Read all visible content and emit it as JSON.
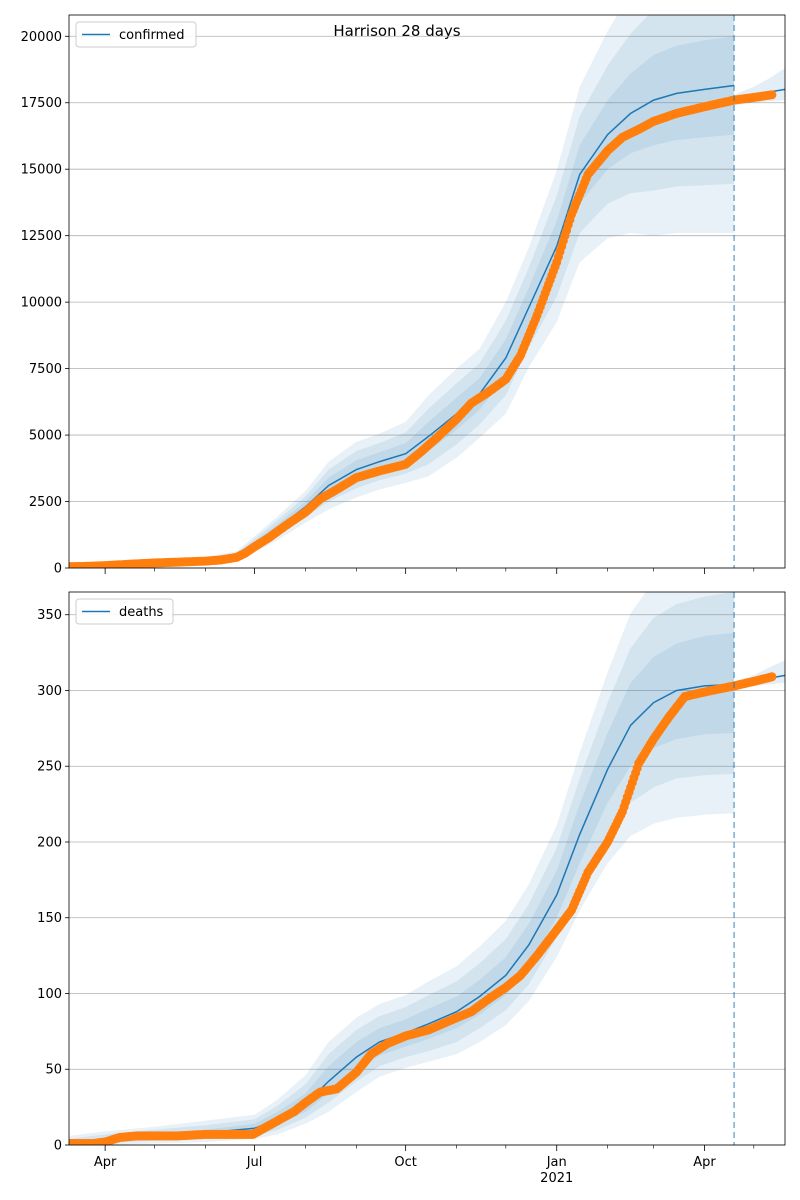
{
  "figure": {
    "title": "Harrison 28 days"
  },
  "colors": {
    "model_line": "#1f77b4",
    "observed": "#ff7f0e",
    "band": "#1f77b4",
    "grid": "#b0b0b0"
  },
  "x_axis": {
    "start": "2020-03-10",
    "end": "2021-05-20",
    "ticks": [
      {
        "date": "2020-04-01",
        "label": "Apr"
      },
      {
        "date": "2020-07-01",
        "label": "Jul"
      },
      {
        "date": "2020-10-01",
        "label": "Oct"
      },
      {
        "date": "2021-01-01",
        "label": "Jan",
        "sublabel": "2021"
      },
      {
        "date": "2021-04-01",
        "label": "Apr"
      }
    ],
    "minor_ticks": [
      "2020-05-01",
      "2020-06-01",
      "2020-08-01",
      "2020-09-01",
      "2020-11-01",
      "2020-12-01",
      "2021-02-01",
      "2021-03-01",
      "2021-05-01"
    ],
    "forecast_start": "2021-04-19"
  },
  "chart_data": [
    {
      "type": "line",
      "title": "Harrison 28 days",
      "legend": "confirmed",
      "legend_position": "upper-left",
      "grid": "y",
      "ylim": [
        0,
        20800
      ],
      "yticks": [
        0,
        2500,
        5000,
        7500,
        10000,
        12500,
        15000,
        17500,
        20000
      ],
      "ytick_labels": [
        "0",
        "2500",
        "5000",
        "7500",
        "10000",
        "12500",
        "15000",
        "17500",
        "20000"
      ],
      "model": {
        "dates": [
          "2020-03-10",
          "2020-04-01",
          "2020-05-01",
          "2020-06-01",
          "2020-06-20",
          "2020-07-01",
          "2020-07-15",
          "2020-08-01",
          "2020-08-15",
          "2020-09-01",
          "2020-09-15",
          "2020-10-01",
          "2020-10-15",
          "2020-11-01",
          "2020-11-15",
          "2020-12-01",
          "2020-12-15",
          "2021-01-01",
          "2021-01-15",
          "2021-02-01",
          "2021-02-15",
          "2021-03-01",
          "2021-03-15",
          "2021-04-01",
          "2021-04-19"
        ],
        "values": [
          0,
          80,
          170,
          270,
          450,
          900,
          1500,
          2300,
          3100,
          3700,
          4000,
          4300,
          4950,
          5800,
          6550,
          7900,
          9800,
          12100,
          14800,
          16300,
          17100,
          17600,
          17850,
          18000,
          18150
        ],
        "bands": [
          {
            "lower": [
              0,
              60,
              130,
              220,
              390,
              800,
              1350,
              2100,
              2800,
              3350,
              3650,
              3900,
              4400,
              5200,
              5950,
              7200,
              9050,
              11150,
              13700,
              15000,
              15600,
              15900,
              16100,
              16200,
              16300
            ],
            "upper": [
              20,
              100,
              210,
              320,
              510,
              1000,
              1650,
              2500,
              3400,
              4050,
              4350,
              4700,
              5500,
              6400,
              7150,
              8600,
              10550,
              13050,
              15900,
              17600,
              18600,
              19300,
              19650,
              19850,
              20000
            ]
          },
          {
            "lower": [
              0,
              40,
              100,
              180,
              330,
              700,
              1200,
              1900,
              2500,
              3000,
              3300,
              3550,
              3900,
              4650,
              5400,
              6500,
              8300,
              10200,
              12600,
              13700,
              14100,
              14200,
              14350,
              14400,
              14450
            ],
            "upper": [
              40,
              120,
              250,
              370,
              570,
              1100,
              1800,
              2700,
              3700,
              4400,
              4700,
              5100,
              6000,
              6950,
              7700,
              9300,
              11300,
              14000,
              17000,
              18900,
              20100,
              21000,
              21400,
              21700,
              21850
            ]
          },
          {
            "lower": [
              0,
              20,
              70,
              140,
              270,
              600,
              1050,
              1700,
              2200,
              2650,
              2950,
              3200,
              3450,
              4150,
              4900,
              5800,
              7550,
              9250,
              11500,
              12400,
              12600,
              12500,
              12600,
              12600,
              12600
            ],
            "upper": [
              60,
              140,
              290,
              420,
              630,
              1200,
              1950,
              2900,
              4000,
              4750,
              5050,
              5500,
              6500,
              7500,
              8250,
              10000,
              12050,
              14950,
              18100,
              20200,
              21600,
              22700,
              23150,
              23500,
              23700
            ]
          }
        ]
      },
      "forecast": {
        "dates": [
          "2021-04-19",
          "2021-05-01",
          "2021-05-10",
          "2021-05-20"
        ],
        "values": [
          17580,
          17750,
          17900,
          18000
        ],
        "lower": [
          17400,
          17500,
          17550,
          17600
        ],
        "upper": [
          17800,
          18100,
          18400,
          18800
        ]
      },
      "observed": {
        "dates": [
          "2020-03-10",
          "2020-03-20",
          "2020-04-01",
          "2020-04-15",
          "2020-05-01",
          "2020-05-15",
          "2020-06-01",
          "2020-06-10",
          "2020-06-20",
          "2020-06-25",
          "2020-07-01",
          "2020-07-10",
          "2020-07-20",
          "2020-08-01",
          "2020-08-10",
          "2020-08-20",
          "2020-09-01",
          "2020-09-15",
          "2020-10-01",
          "2020-10-10",
          "2020-10-20",
          "2020-11-01",
          "2020-11-10",
          "2020-11-20",
          "2020-12-01",
          "2020-12-10",
          "2020-12-20",
          "2021-01-01",
          "2021-01-10",
          "2021-01-20",
          "2021-02-01",
          "2021-02-10",
          "2021-02-20",
          "2021-03-01",
          "2021-03-15",
          "2021-04-01",
          "2021-04-19",
          "2021-05-01",
          "2021-05-12"
        ],
        "values": [
          50,
          60,
          90,
          140,
          190,
          220,
          260,
          300,
          400,
          550,
          800,
          1150,
          1600,
          2100,
          2600,
          2950,
          3400,
          3650,
          3900,
          4350,
          4900,
          5600,
          6200,
          6600,
          7100,
          8000,
          9500,
          11500,
          13300,
          14800,
          15700,
          16200,
          16500,
          16800,
          17100,
          17350,
          17600,
          17700,
          17800
        ]
      }
    },
    {
      "type": "line",
      "legend": "deaths",
      "legend_position": "upper-left",
      "grid": "y",
      "ylim": [
        0,
        365
      ],
      "yticks": [
        0,
        50,
        100,
        150,
        200,
        250,
        300,
        350
      ],
      "ytick_labels": [
        "0",
        "50",
        "100",
        "150",
        "200",
        "250",
        "300",
        "350"
      ],
      "model": {
        "dates": [
          "2020-03-10",
          "2020-04-01",
          "2020-05-01",
          "2020-06-01",
          "2020-07-01",
          "2020-07-15",
          "2020-08-01",
          "2020-08-15",
          "2020-09-01",
          "2020-09-15",
          "2020-10-01",
          "2020-10-15",
          "2020-11-01",
          "2020-11-15",
          "2020-12-01",
          "2020-12-15",
          "2021-01-01",
          "2021-01-15",
          "2021-02-01",
          "2021-02-15",
          "2021-03-01",
          "2021-03-15",
          "2021-04-01",
          "2021-04-19"
        ],
        "values": [
          0,
          3,
          6,
          8,
          11,
          17,
          27,
          42,
          58,
          68,
          74,
          80,
          88,
          98,
          112,
          132,
          165,
          205,
          248,
          277,
          292,
          300,
          303,
          304
        ],
        "bands": [
          {
            "lower": [
              0,
              2,
              4,
              6,
              8,
              13,
              22,
              34,
              49,
              59,
              65,
              70,
              77,
              86,
              99,
              118,
              150,
              186,
              226,
              250,
              262,
              268,
              271,
              272
            ],
            "upper": [
              2,
              5,
              8,
              10,
              14,
              22,
              34,
              52,
              68,
              77,
              83,
              90,
              98,
              109,
              124,
              146,
              181,
              225,
              272,
              305,
              322,
              331,
              336,
              338
            ]
          },
          {
            "lower": [
              0,
              1,
              3,
              4,
              6,
              10,
              18,
              28,
              42,
              52,
              58,
              62,
              68,
              77,
              89,
              106,
              137,
              170,
              205,
              226,
              236,
              242,
              244,
              245
            ],
            "upper": [
              4,
              7,
              10,
              13,
              17,
              26,
              40,
              60,
              76,
              85,
              91,
              99,
              108,
              120,
              136,
              159,
              196,
              242,
              292,
              328,
              348,
              357,
              362,
              365
            ]
          },
          {
            "lower": [
              0,
              0,
              1,
              2,
              4,
              7,
              14,
              22,
              35,
              45,
              51,
              55,
              60,
              68,
              79,
              95,
              124,
              155,
              186,
              204,
              212,
              216,
              218,
              219
            ],
            "upper": [
              6,
              9,
              12,
              16,
              20,
              30,
              46,
              68,
              84,
              93,
              99,
              108,
              118,
              131,
              148,
              172,
              211,
              259,
              312,
              351,
              372,
              382,
              388,
              391
            ]
          }
        ]
      },
      "forecast": {
        "dates": [
          "2021-04-19",
          "2021-05-01",
          "2021-05-10",
          "2021-05-20"
        ],
        "values": [
          304,
          306,
          308,
          310
        ],
        "lower": [
          302,
          303,
          304,
          305
        ],
        "upper": [
          306,
          310,
          315,
          320
        ]
      },
      "observed": {
        "dates": [
          "2020-03-10",
          "2020-03-25",
          "2020-04-01",
          "2020-04-10",
          "2020-04-20",
          "2020-05-01",
          "2020-05-15",
          "2020-06-01",
          "2020-06-15",
          "2020-06-30",
          "2020-07-05",
          "2020-07-15",
          "2020-07-25",
          "2020-08-01",
          "2020-08-10",
          "2020-08-20",
          "2020-09-01",
          "2020-09-10",
          "2020-09-20",
          "2020-10-01",
          "2020-10-15",
          "2020-11-01",
          "2020-11-10",
          "2020-11-20",
          "2020-12-01",
          "2020-12-10",
          "2020-12-20",
          "2021-01-01",
          "2021-01-10",
          "2021-01-20",
          "2021-02-01",
          "2021-02-10",
          "2021-02-20",
          "2021-03-01",
          "2021-03-10",
          "2021-03-20",
          "2021-04-01",
          "2021-04-19",
          "2021-05-01",
          "2021-05-12"
        ],
        "values": [
          1,
          1,
          2,
          5,
          6,
          6,
          6,
          7,
          7,
          7,
          10,
          16,
          22,
          28,
          35,
          37,
          48,
          60,
          67,
          72,
          76,
          84,
          88,
          96,
          104,
          112,
          125,
          142,
          155,
          180,
          200,
          220,
          252,
          268,
          282,
          296,
          299,
          303,
          306,
          309
        ]
      }
    }
  ]
}
